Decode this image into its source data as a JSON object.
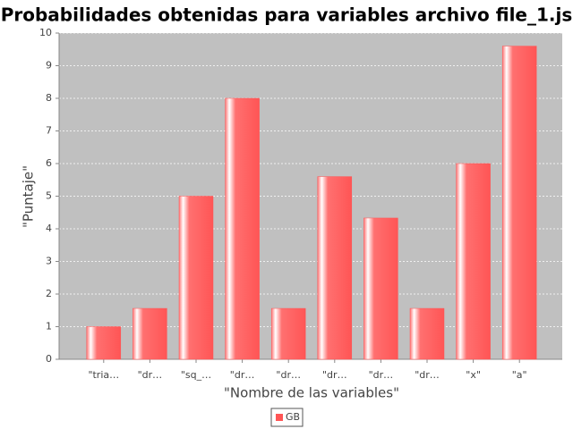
{
  "chart_data": {
    "type": "bar",
    "title": "\"Probabilidades obtenidas para variables archivo file_1.js\"",
    "x_label": "\"Nombre de las variables\"",
    "y_label": "\"Puntaje\"",
    "categories": [
      "\"tria…",
      "\"dr…",
      "\"sq_…",
      "\"dr…",
      "\"dr…",
      "\"dr…",
      "\"dr…",
      "\"dr…",
      "\"x\"",
      "\"a\""
    ],
    "series": [
      {
        "name": "GB",
        "color": "#ff5555",
        "values": [
          1,
          1.56,
          5,
          8,
          1.56,
          5.6,
          4.33,
          1.56,
          6,
          9.6
        ]
      }
    ],
    "ylim": [
      0,
      10
    ],
    "yticks": [
      0,
      1,
      2,
      3,
      4,
      5,
      6,
      7,
      8,
      9,
      10
    ],
    "grid": true,
    "legend": "bottom"
  }
}
